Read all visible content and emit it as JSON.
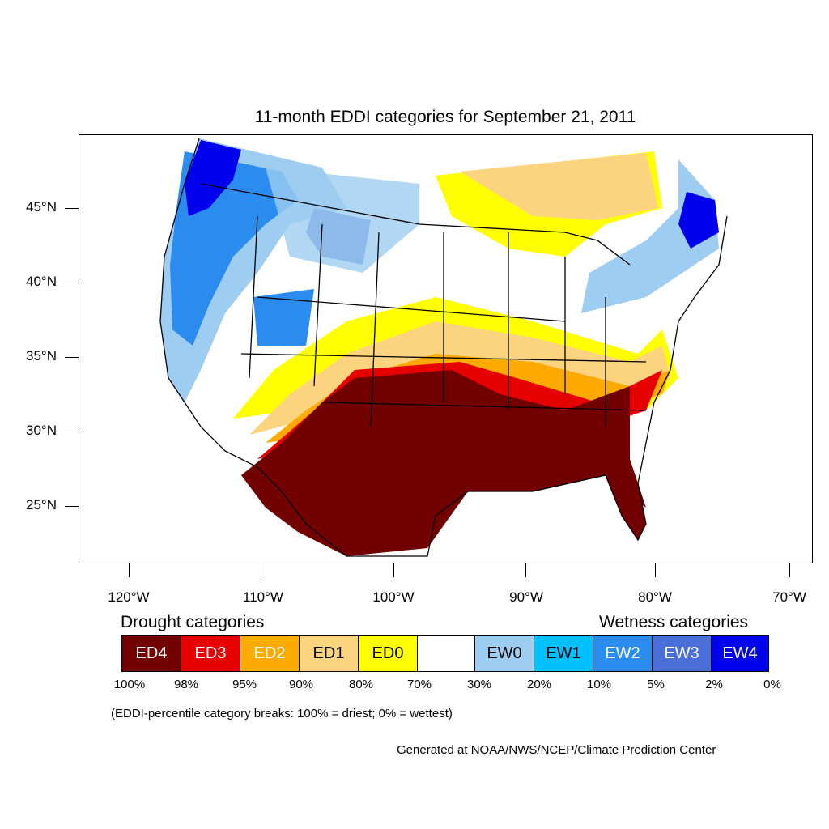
{
  "title": "11-month EDDI categories for September 21, 2011",
  "latitude_labels": [
    "45°N",
    "40°N",
    "35°N",
    "30°N",
    "25°N"
  ],
  "longitude_labels": [
    "120°W",
    "110°W",
    "100°W",
    "90°W",
    "80°W",
    "70°W"
  ],
  "legend": {
    "drought_heading": "Drought categories",
    "wetness_heading": "Wetness categories",
    "categories": [
      {
        "label": "ED4",
        "color": "#730000",
        "text_color": "#ffffff"
      },
      {
        "label": "ED3",
        "color": "#e60000",
        "text_color": "#ffffff"
      },
      {
        "label": "ED2",
        "color": "#ffaa00",
        "text_color": "#ffffff"
      },
      {
        "label": "ED1",
        "color": "#fcd37f",
        "text_color": "#000000"
      },
      {
        "label": "ED0",
        "color": "#ffff00",
        "text_color": "#000000"
      },
      {
        "label": "",
        "color": "#ffffff",
        "text_color": "#000000"
      },
      {
        "label": "EW0",
        "color": "#9dcdf0",
        "text_color": "#000000"
      },
      {
        "label": "EW1",
        "color": "#00c0ff",
        "text_color": "#000000"
      },
      {
        "label": "EW2",
        "color": "#2b8cf0",
        "text_color": "#ffffff"
      },
      {
        "label": "EW3",
        "color": "#4a6fd8",
        "text_color": "#ffffff"
      },
      {
        "label": "EW4",
        "color": "#0000ee",
        "text_color": "#ffffff"
      }
    ],
    "percent_breaks": [
      "100%",
      "98%",
      "95%",
      "90%",
      "80%",
      "70%",
      "30%",
      "20%",
      "10%",
      "5%",
      "2%",
      "0%"
    ]
  },
  "breaks_note": "(EDDI-percentile category breaks: 100% = driest; 0% = wettest)",
  "credit": "Generated at NOAA/NWS/NCEP/Climate Prediction Center"
}
